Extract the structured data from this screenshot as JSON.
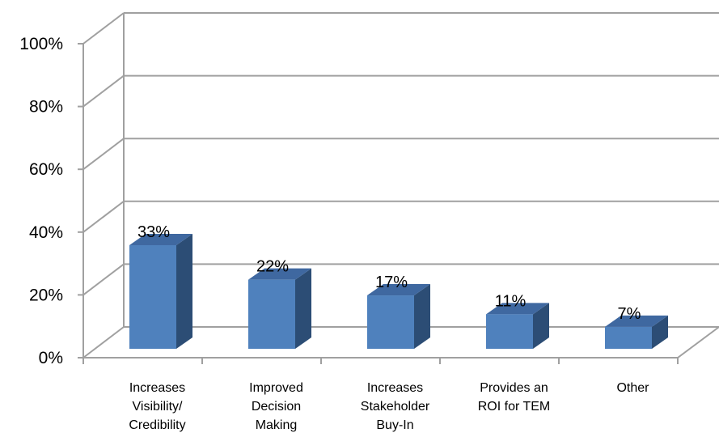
{
  "chart_data": {
    "type": "bar",
    "categories": [
      [
        "Increases",
        "Visibility/",
        "Credibility"
      ],
      [
        "Improved",
        "Decision",
        "Making"
      ],
      [
        "Increases",
        "Stakeholder",
        "Buy-In"
      ],
      [
        "Provides an",
        "ROI for TEM"
      ],
      [
        "Other"
      ]
    ],
    "values": [
      33,
      22,
      17,
      11,
      7
    ],
    "data_labels": [
      "33%",
      "22%",
      "17%",
      "11%",
      "7%"
    ],
    "y_ticks": [
      "0%",
      "20%",
      "40%",
      "60%",
      "80%",
      "100%"
    ],
    "ylim": [
      0,
      100
    ],
    "grid": true,
    "three_d": true,
    "colors": {
      "bar_front": "#4f81bd",
      "bar_side": "#2c4d75",
      "bar_top": "#3f68a0",
      "grid": "#a0a0a0"
    }
  }
}
